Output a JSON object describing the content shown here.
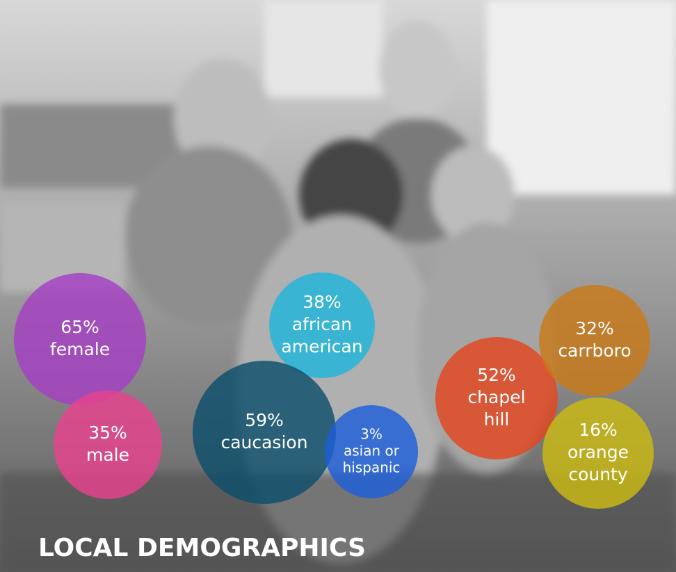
{
  "title": "LOCAL DEMOGRAPHICS",
  "bubbles": [
    {
      "value_label": "65%",
      "lines": [
        "female"
      ],
      "color": "#a53fc4"
    },
    {
      "value_label": "35%",
      "lines": [
        "male"
      ],
      "color": "#e8438d"
    },
    {
      "value_label": "38%",
      "lines": [
        "african",
        "american"
      ],
      "color": "#1fb4da"
    },
    {
      "value_label": "59%",
      "lines": [
        "caucasion"
      ],
      "color": "#0d4f6b"
    },
    {
      "value_label": "3%",
      "lines": [
        "asian or",
        "hispanic"
      ],
      "color": "#1d5ed8"
    },
    {
      "value_label": "52%",
      "lines": [
        "chapel",
        "hill"
      ],
      "color": "#e2461f"
    },
    {
      "value_label": "32%",
      "lines": [
        "carrboro"
      ],
      "color": "#c97a18"
    },
    {
      "value_label": "16%",
      "lines": [
        "orange",
        "county"
      ],
      "color": "#cbbb14"
    }
  ]
}
